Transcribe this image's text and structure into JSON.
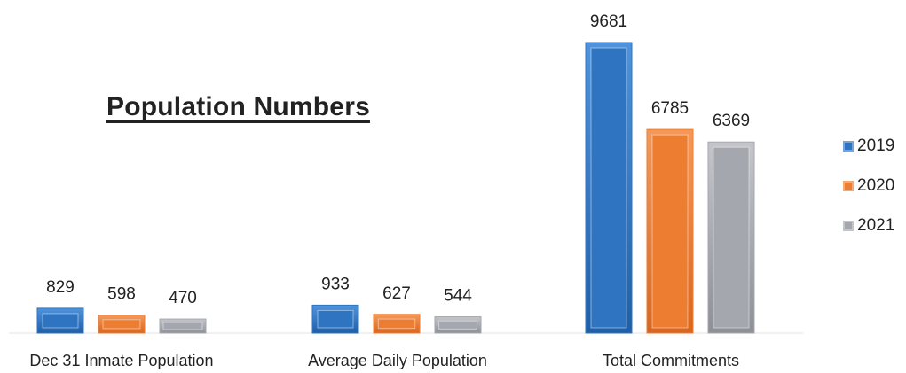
{
  "chart_data": {
    "type": "bar",
    "title": "Population Numbers",
    "categories": [
      "Dec 31 Inmate Population",
      "Average Daily Population",
      "Total Commitments"
    ],
    "series": [
      {
        "name": "2019",
        "color": "#2e74c0",
        "values": [
          829,
          933,
          9681
        ]
      },
      {
        "name": "2020",
        "color": "#ed7d31",
        "values": [
          598,
          627,
          6785
        ]
      },
      {
        "name": "2021",
        "color": "#a5a7ae",
        "values": [
          470,
          544,
          6369
        ]
      }
    ],
    "xlabel": "",
    "ylabel": "",
    "ylim": [
      0,
      9681
    ],
    "grid": false,
    "legend_position": "right"
  }
}
